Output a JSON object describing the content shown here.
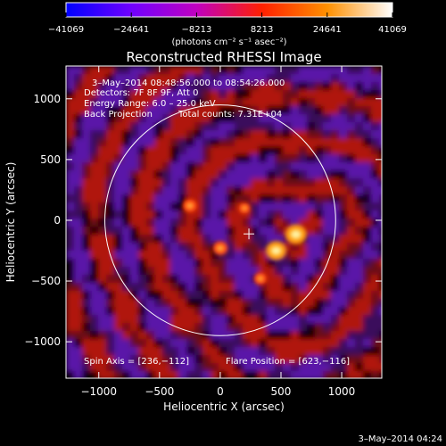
{
  "chart_data": {
    "type": "heatmap",
    "title": "Reconstructed RHESSI Image",
    "xlabel": "Heliocentric X (arcsec)",
    "ylabel": "Heliocentric Y (arcsec)",
    "xlim": [
      -1270,
      1330
    ],
    "ylim": [
      -1300,
      1270
    ],
    "x_ticks": [
      -1000,
      -500,
      0,
      500,
      1000
    ],
    "y_ticks": [
      1000,
      500,
      0,
      -500,
      -1000
    ],
    "x_tick_labels": [
      "−1000",
      "−500",
      "0",
      "500",
      "1000"
    ],
    "y_tick_labels": [
      "1000",
      "500",
      "0",
      "−500",
      "−1000"
    ],
    "colorbar": {
      "ticks": [
        -41069,
        -24641,
        -8213,
        8213,
        24641,
        41069
      ],
      "tick_labels": [
        "−41069",
        "−24641",
        "−8213",
        "8213",
        "24641",
        "41069"
      ],
      "unit_label": "(photons cm⁻² s⁻¹ asec⁻²)",
      "range": [
        -41069,
        41069
      ],
      "colormap": [
        "#0000ff",
        "#7000ff",
        "#c000c0",
        "#ff2000",
        "#ff9000",
        "#ffffff"
      ]
    },
    "annotations": {
      "time_range": "3–May–2014 08:48:56.000 to 08:54:26.000",
      "detectors": "Detectors: 7F 8F 9F, Att 0",
      "energy_range": "Energy Range: 6.0 – 25.0 keV",
      "method": "Back Projection",
      "total_counts": "Total counts: 7.31E+04",
      "spin_axis": "Spin Axis = [236,−112]",
      "flare_position": "Flare Position = [623,−116]"
    },
    "spin_axis": [
      236,
      -112
    ],
    "solar_disk": {
      "center": [
        0,
        0
      ],
      "radius_arcsec": 950
    },
    "sources": [
      {
        "x": 623,
        "y": -116,
        "brightness": 1.0
      },
      {
        "x": 460,
        "y": -250,
        "brightness": 0.95
      },
      {
        "x": 0,
        "y": -230,
        "brightness": 0.6
      },
      {
        "x": -250,
        "y": 120,
        "brightness": 0.55
      },
      {
        "x": 200,
        "y": 100,
        "brightness": 0.4
      },
      {
        "x": 330,
        "y": -480,
        "brightness": 0.45
      }
    ]
  },
  "footer": {
    "timestamp": "3–May–2014 04:24"
  }
}
